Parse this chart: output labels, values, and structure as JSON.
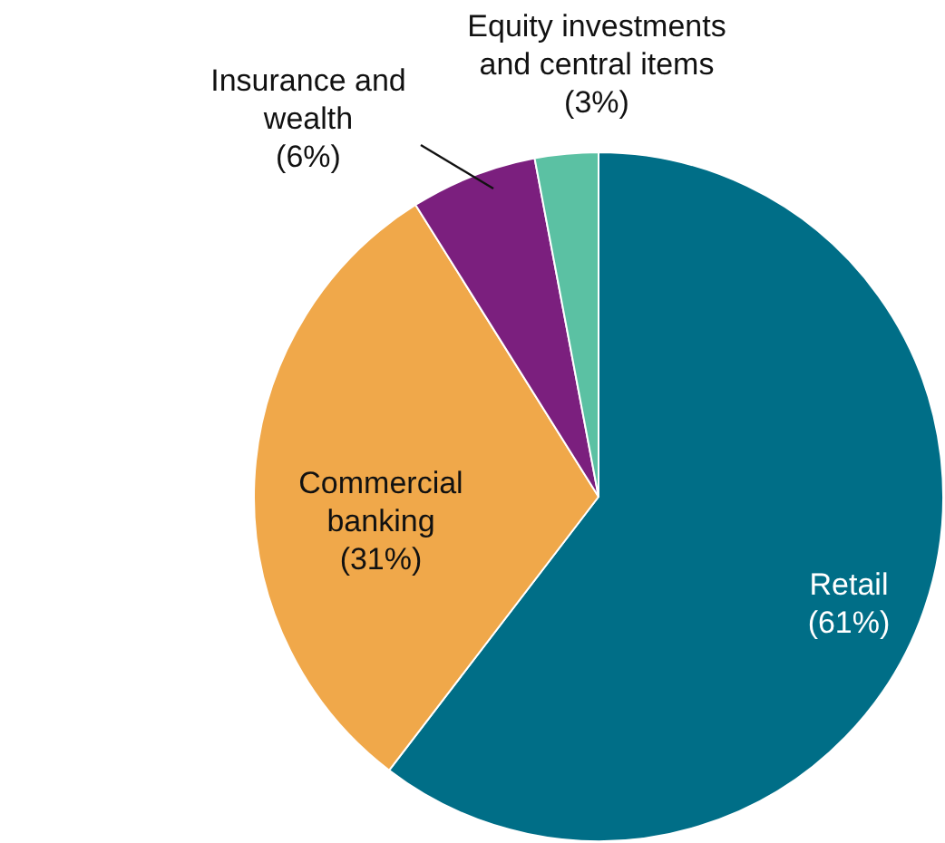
{
  "chart_data": {
    "type": "pie",
    "categories": [
      "Retail",
      "Commercial banking",
      "Insurance and wealth",
      "Equity investments and central items"
    ],
    "values": [
      61,
      31,
      6,
      3
    ],
    "colors": [
      "#006e87",
      "#f0a84a",
      "#7b1f7e",
      "#5bc1a3"
    ],
    "value_labels": [
      "(61%)",
      "(31%)",
      "(6%)",
      "(3%)"
    ]
  }
}
